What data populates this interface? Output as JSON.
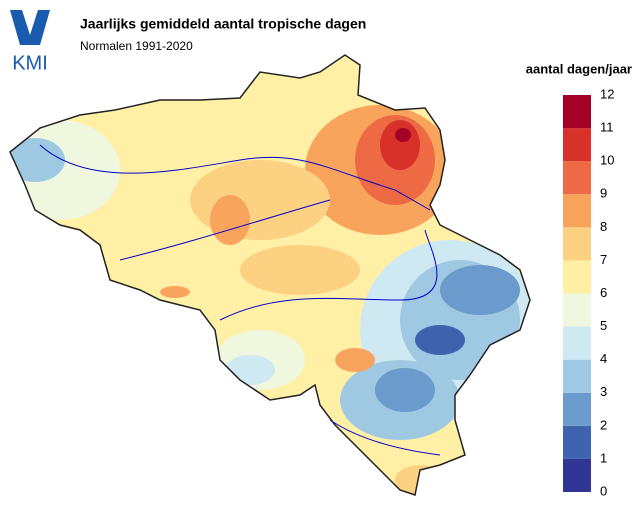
{
  "logo": {
    "text": "KMI"
  },
  "header": {
    "title": "Jaarlijks gemiddeld aantal tropische dagen",
    "subtitle": "Normalen 1991-2020"
  },
  "legend": {
    "title": "aantal dagen/jaar",
    "ticks": [
      0,
      1,
      2,
      3,
      4,
      5,
      6,
      7,
      8,
      9,
      10,
      11,
      12
    ],
    "colors": [
      "#313695",
      "#3f63ae",
      "#6b9bcc",
      "#9fc9e3",
      "#cfe9f3",
      "#eff7df",
      "#fff0a6",
      "#fdd182",
      "#f9a45d",
      "#ee6a45",
      "#d7312a",
      "#a50026"
    ]
  }
}
